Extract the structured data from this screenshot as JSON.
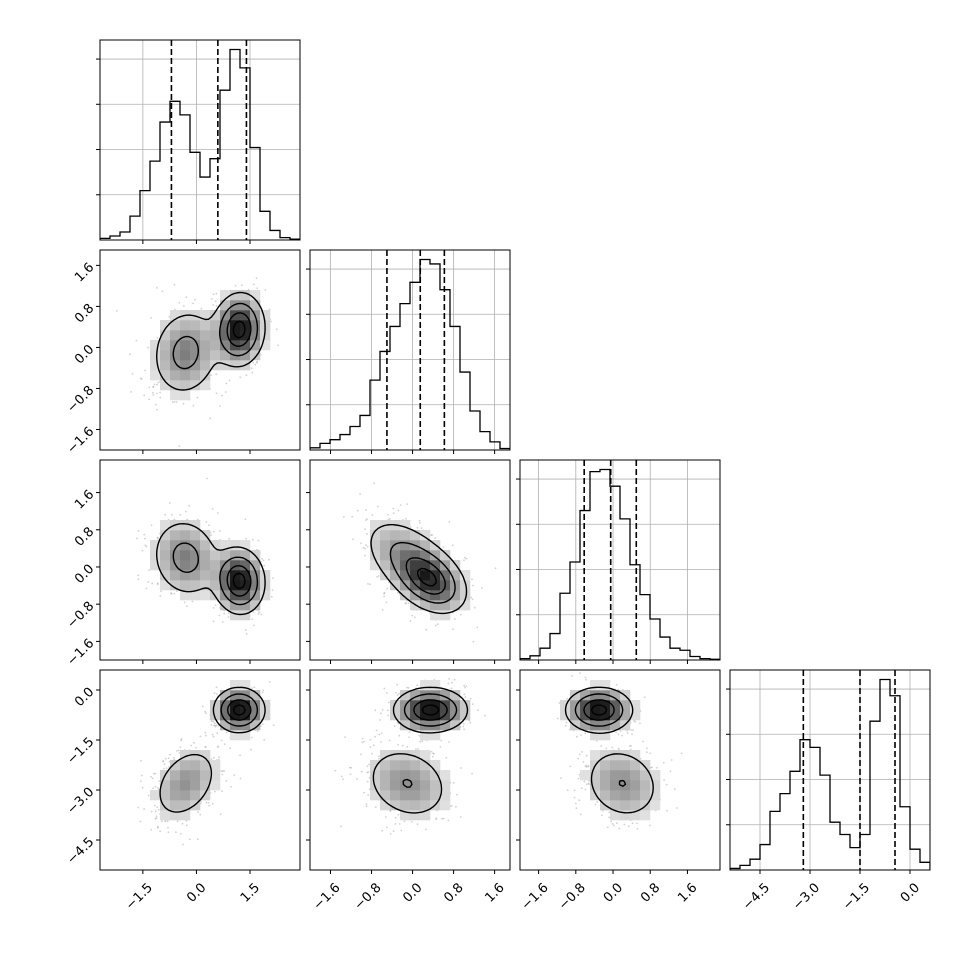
{
  "chart_data": {
    "type": "corner",
    "params": [
      "p0",
      "p1",
      "p2",
      "p3"
    ],
    "grid": true,
    "axis_ranges": {
      "p0": [
        -2.7,
        2.9
      ],
      "p1": [
        -2.0,
        1.9
      ],
      "p2": [
        -2.0,
        2.3
      ],
      "p3": [
        -5.4,
        0.6
      ]
    },
    "x_tick_labels": {
      "p0": [
        "−1.5",
        "0.0",
        "1.5"
      ],
      "p1": [
        "−1.6",
        "−0.8",
        "0.0",
        "0.8",
        "1.6"
      ],
      "p2": [
        "−1.6",
        "−0.8",
        "0.0",
        "0.8",
        "1.6"
      ],
      "p3": [
        "−4.5",
        "−3.0",
        "−1.5",
        "0.0"
      ]
    },
    "x_tick_values": {
      "p0": [
        -1.5,
        0.0,
        1.5
      ],
      "p1": [
        -1.6,
        -0.8,
        0.0,
        0.8,
        1.6
      ],
      "p2": [
        -1.6,
        -0.8,
        0.0,
        0.8,
        1.6
      ],
      "p3": [
        -4.5,
        -3.0,
        -1.5,
        0.0
      ]
    },
    "y_tick_labels": {
      "p1": [
        "−1.6",
        "−0.8",
        "0.0",
        "0.8",
        "1.6"
      ],
      "p2": [
        "−1.6",
        "−0.8",
        "0.0",
        "0.8",
        "1.6"
      ],
      "p3": [
        "−4.5",
        "−3.0",
        "−1.5",
        "0.0"
      ]
    },
    "y_tick_values": {
      "p1": [
        -1.6,
        -0.8,
        0.0,
        0.8,
        1.6
      ],
      "p2": [
        -1.6,
        -0.8,
        0.0,
        0.8,
        1.6
      ],
      "p3": [
        -4.5,
        -3.0,
        -1.5,
        0.0
      ]
    },
    "quantiles": {
      "p0": [
        -0.7,
        0.6,
        1.4
      ],
      "p1": [
        -0.5,
        0.15,
        0.62
      ],
      "p2": [
        -0.62,
        -0.05,
        0.5
      ],
      "p3": [
        -3.2,
        -1.5,
        -0.45
      ]
    },
    "histograms": {
      "p0": {
        "edges": [
          -2.7,
          -2.42,
          -2.14,
          -1.86,
          -1.58,
          -1.3,
          -1.02,
          -0.74,
          -0.46,
          -0.18,
          0.1,
          0.38,
          0.66,
          0.94,
          1.22,
          1.5,
          1.78,
          2.06,
          2.34,
          2.62,
          2.9
        ],
        "counts": [
          2,
          5,
          10,
          30,
          62,
          99,
          148,
          174,
          157,
          110,
          79,
          102,
          188,
          239,
          216,
          116,
          36,
          12,
          3,
          1
        ]
      },
      "p1": {
        "edges": [
          -2.0,
          -1.805,
          -1.61,
          -1.415,
          -1.22,
          -1.025,
          -0.83,
          -0.635,
          -0.44,
          -0.245,
          -0.05,
          0.145,
          0.34,
          0.535,
          0.73,
          0.925,
          1.12,
          1.315,
          1.51,
          1.705,
          1.9
        ],
        "counts": [
          3,
          9,
          14,
          21,
          32,
          47,
          95,
          134,
          168,
          199,
          228,
          259,
          253,
          218,
          168,
          106,
          53,
          25,
          11,
          2
        ]
      },
      "p2": {
        "edges": [
          -2.0,
          -1.785,
          -1.57,
          -1.355,
          -1.14,
          -0.925,
          -0.71,
          -0.495,
          -0.28,
          -0.065,
          0.15,
          0.365,
          0.58,
          0.795,
          1.01,
          1.225,
          1.44,
          1.655,
          1.87,
          2.085,
          2.3
        ],
        "counts": [
          2,
          6,
          17,
          38,
          96,
          141,
          215,
          271,
          274,
          250,
          203,
          137,
          94,
          59,
          33,
          17,
          14,
          5,
          2,
          1
        ]
      },
      "p3": {
        "edges": [
          -5.4,
          -5.1,
          -4.8,
          -4.5,
          -4.2,
          -3.9,
          -3.6,
          -3.3,
          -3.0,
          -2.7,
          -2.4,
          -2.1,
          -1.8,
          -1.5,
          -1.2,
          -0.9,
          -0.6,
          -0.3,
          0.0,
          0.3,
          0.6
        ],
        "counts": [
          2,
          6,
          14,
          33,
          76,
          99,
          128,
          169,
          159,
          123,
          62,
          46,
          29,
          46,
          193,
          247,
          226,
          82,
          27,
          10
        ]
      }
    },
    "components": [
      {
        "weight": 0.45,
        "mean": [
          -0.3,
          -0.1,
          0.2,
          -2.8
        ],
        "std": [
          0.5,
          0.45,
          0.45,
          0.6
        ]
      },
      {
        "weight": 0.55,
        "mean": [
          1.2,
          0.35,
          -0.3,
          -0.6
        ],
        "std": [
          0.35,
          0.35,
          0.35,
          0.33
        ]
      }
    ]
  }
}
